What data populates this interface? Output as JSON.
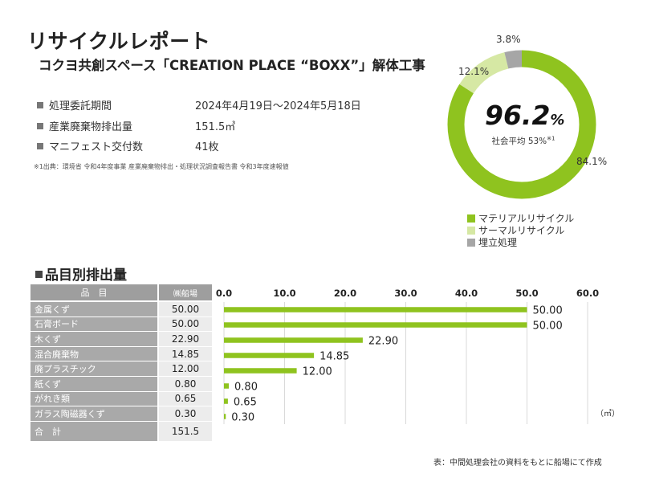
{
  "header": {
    "title": "リサイクルレポート",
    "subtitle": "コクヨ共創スペース「CREATION PLACE “BOXX”」解体工事"
  },
  "info": [
    {
      "label": "処理委託期間",
      "value": "2024年4月19日〜2024年5月18日"
    },
    {
      "label": "産業廃棄物排出量",
      "value": "151.5㎥"
    },
    {
      "label": "マニフェスト交付数",
      "value": "41枚"
    }
  ],
  "note": "※1出典：環境省 令和4年度事業 産業廃棄物排出・処理状況調査報告書 令和3年度速報値",
  "donut": {
    "center_value": "96.2",
    "center_unit": "%",
    "center_caption": "社会平均 53%",
    "center_caption_sup": "※1",
    "slices": [
      {
        "name": "マテリアルリサイクル",
        "value": 84.1,
        "label": "84.1%",
        "color": "#8fc31f"
      },
      {
        "name": "サーマルリサイクル",
        "value": 12.1,
        "label": "12.1%",
        "color": "#d6e8a4"
      },
      {
        "name": "埋立処理",
        "value": 3.8,
        "label": "3.8%",
        "color": "#a6a6a6"
      }
    ]
  },
  "section_title": "品目別排出量",
  "table": {
    "header_name": "品　目",
    "header_value": "㈱船場",
    "rows": [
      {
        "name": "金属くず",
        "value": "50.00"
      },
      {
        "name": "石膏ボード",
        "value": "50.00"
      },
      {
        "name": "木くず",
        "value": "22.90"
      },
      {
        "name": "混合廃棄物",
        "value": "14.85"
      },
      {
        "name": "廃プラスチック",
        "value": "12.00"
      },
      {
        "name": "紙くず",
        "value": "0.80"
      },
      {
        "name": "がれき類",
        "value": "0.65"
      },
      {
        "name": "ガラス陶磁器くず",
        "value": "0.30"
      }
    ],
    "total_name": "合　計",
    "total_value": "151.5"
  },
  "chart_data": {
    "type": "bar",
    "orientation": "horizontal",
    "title": "品目別排出量",
    "categories": [
      "金属くず",
      "石膏ボード",
      "木くず",
      "混合廃棄物",
      "廃プラスチック",
      "紙くず",
      "がれき類",
      "ガラス陶磁器くず"
    ],
    "values": [
      50.0,
      50.0,
      22.9,
      14.85,
      12.0,
      0.8,
      0.65,
      0.3
    ],
    "value_labels": [
      "50.00",
      "50.00",
      "22.90",
      "14.85",
      "12.00",
      "0.80",
      "0.65",
      "0.30"
    ],
    "xlim": [
      0,
      60
    ],
    "xticks": [
      "0.0",
      "10.0",
      "20.0",
      "30.0",
      "40.0",
      "50.0",
      "60.0"
    ],
    "xlabel": "（㎥）",
    "grid": true,
    "bar_color": "#8fc31f"
  },
  "source": "表：中間処理会社の資料をもとに船場にて作成"
}
